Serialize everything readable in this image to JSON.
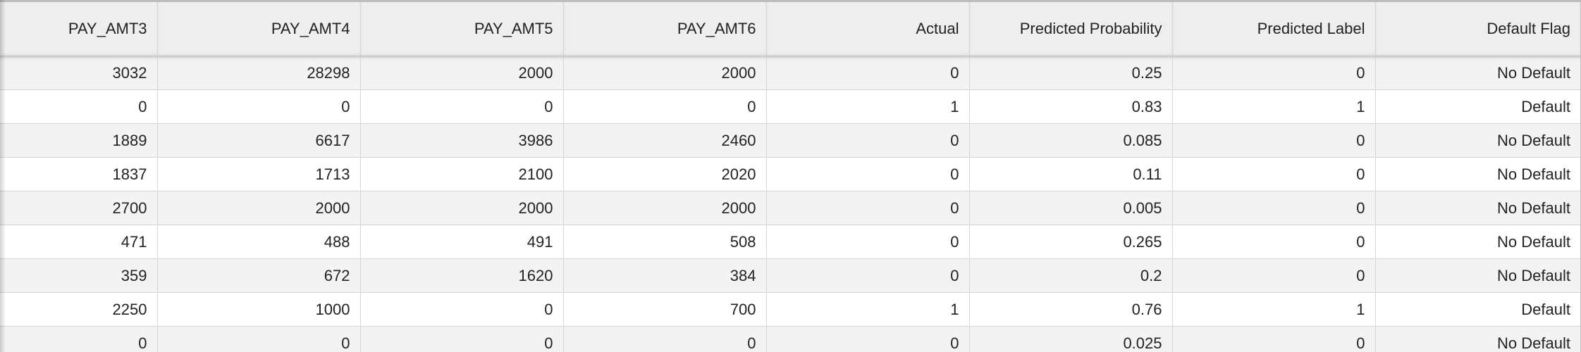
{
  "table": {
    "columns": [
      "PAY_AMT3",
      "PAY_AMT4",
      "PAY_AMT5",
      "PAY_AMT6",
      "Actual",
      "Predicted Probability",
      "Predicted Label",
      "Default Flag"
    ],
    "rows": [
      [
        "3032",
        "28298",
        "2000",
        "2000",
        "0",
        "0.25",
        "0",
        "No Default"
      ],
      [
        "0",
        "0",
        "0",
        "0",
        "1",
        "0.83",
        "1",
        "Default"
      ],
      [
        "1889",
        "6617",
        "3986",
        "2460",
        "0",
        "0.085",
        "0",
        "No Default"
      ],
      [
        "1837",
        "1713",
        "2100",
        "2020",
        "0",
        "0.11",
        "0",
        "No Default"
      ],
      [
        "2700",
        "2000",
        "2000",
        "2000",
        "0",
        "0.005",
        "0",
        "No Default"
      ],
      [
        "471",
        "488",
        "491",
        "508",
        "0",
        "0.265",
        "0",
        "No Default"
      ],
      [
        "359",
        "672",
        "1620",
        "384",
        "0",
        "0.2",
        "0",
        "No Default"
      ],
      [
        "2250",
        "1000",
        "0",
        "700",
        "1",
        "0.76",
        "1",
        "Default"
      ],
      [
        "0",
        "0",
        "0",
        "0",
        "0",
        "0.025",
        "0",
        "No Default"
      ]
    ]
  },
  "colors": {
    "header_bg": "#eeeeee",
    "row_alt_bg": "#f3f3f3",
    "row_bg": "#ffffff",
    "grid_line": "#d6d6d6",
    "text": "#222222"
  }
}
